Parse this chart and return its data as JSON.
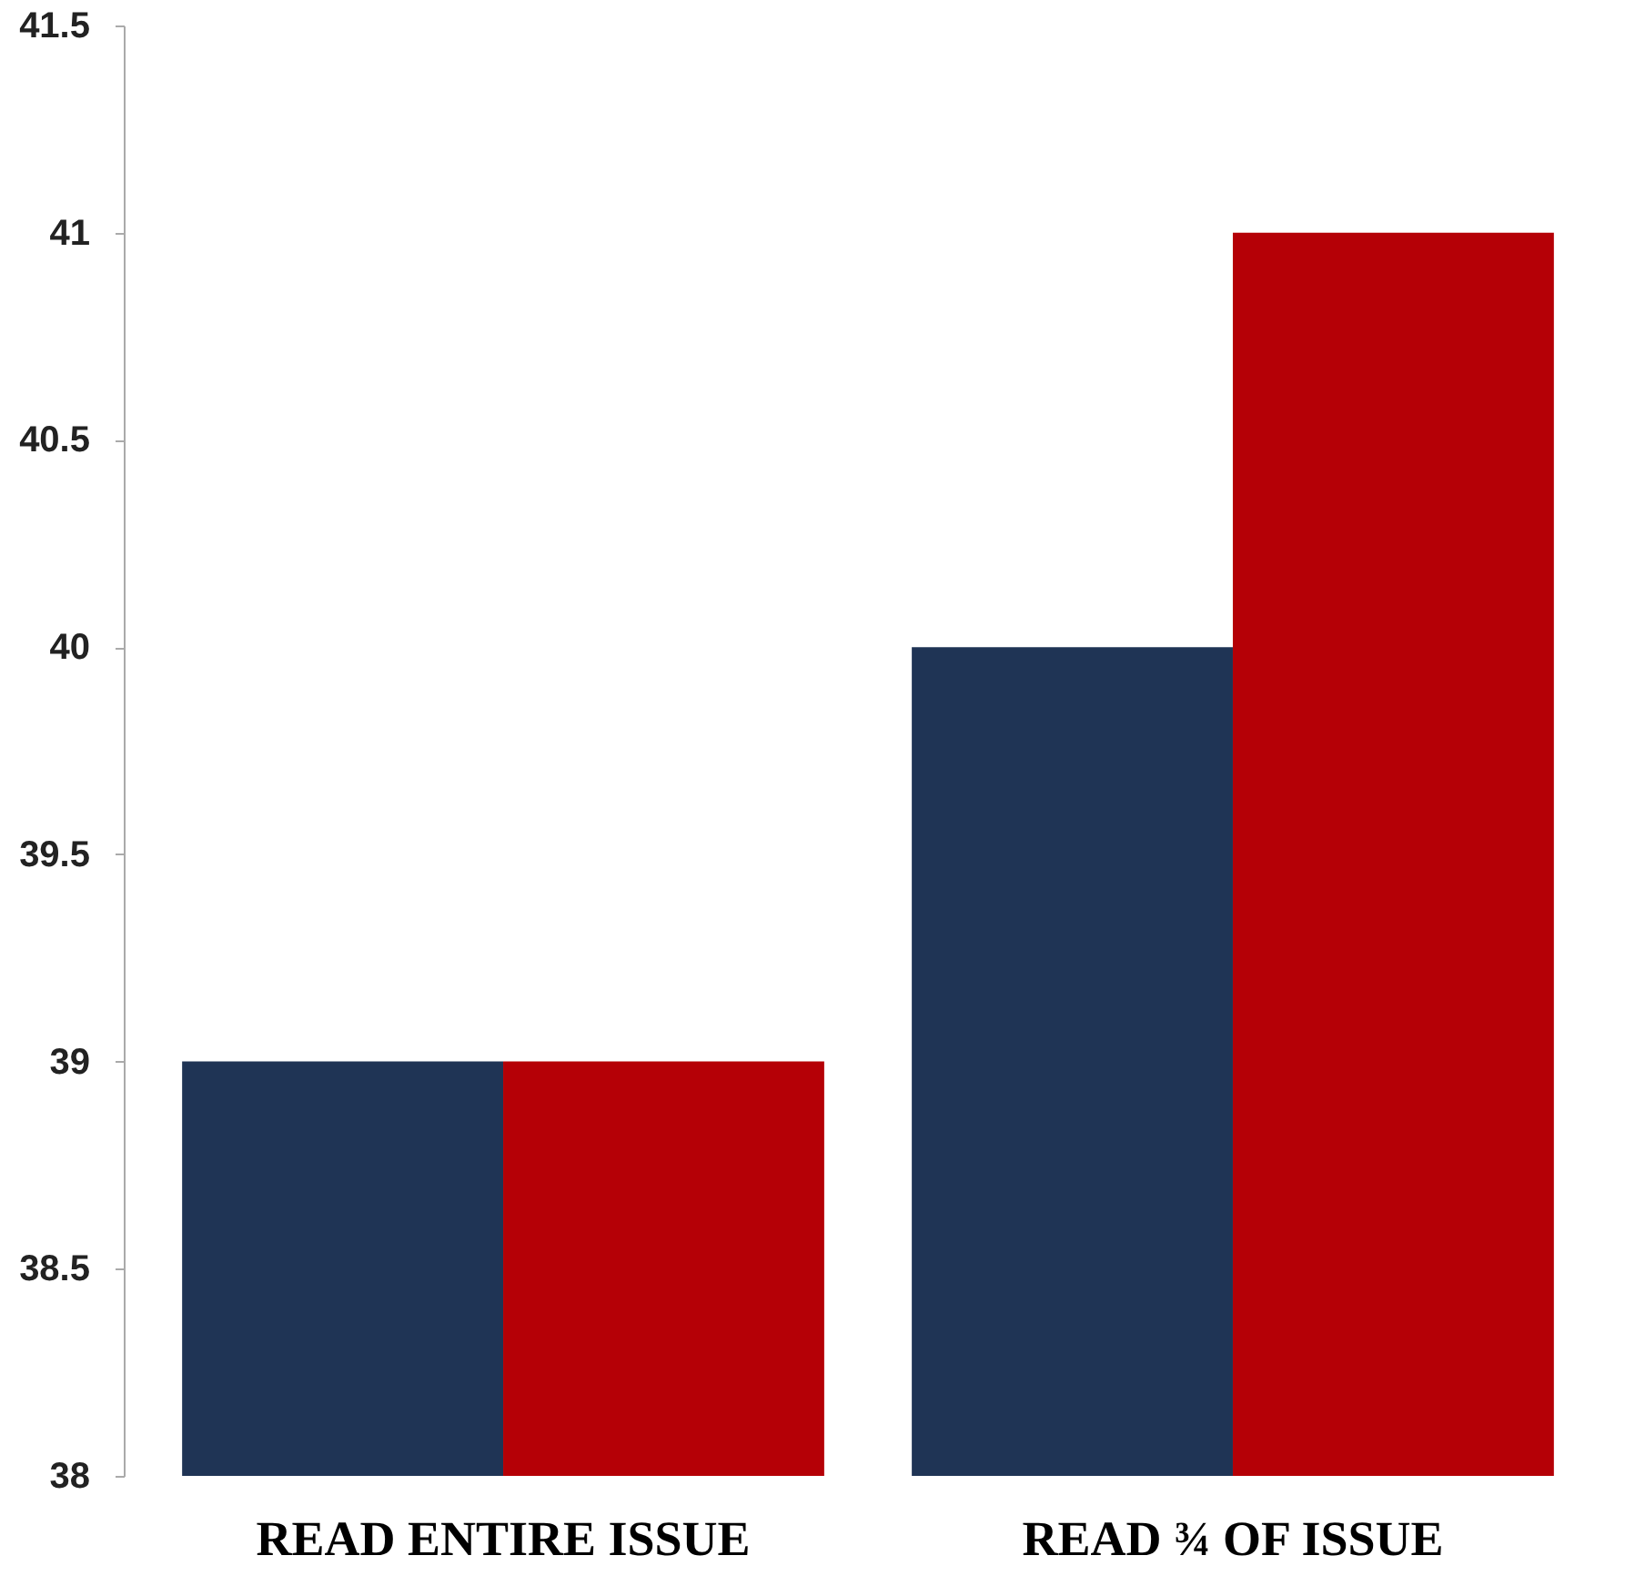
{
  "chart_data": {
    "type": "bar",
    "categories": [
      "READ ENTIRE ISSUE",
      "READ ¾ OF ISSUE"
    ],
    "series": [
      {
        "color": "#1f3455",
        "values": [
          39,
          40
        ]
      },
      {
        "color": "#b50006",
        "values": [
          39,
          41
        ]
      }
    ],
    "ylim": [
      38,
      41.5
    ],
    "yticks": [
      38,
      38.5,
      39,
      39.5,
      40,
      40.5,
      41,
      41.5
    ],
    "grid": false
  }
}
